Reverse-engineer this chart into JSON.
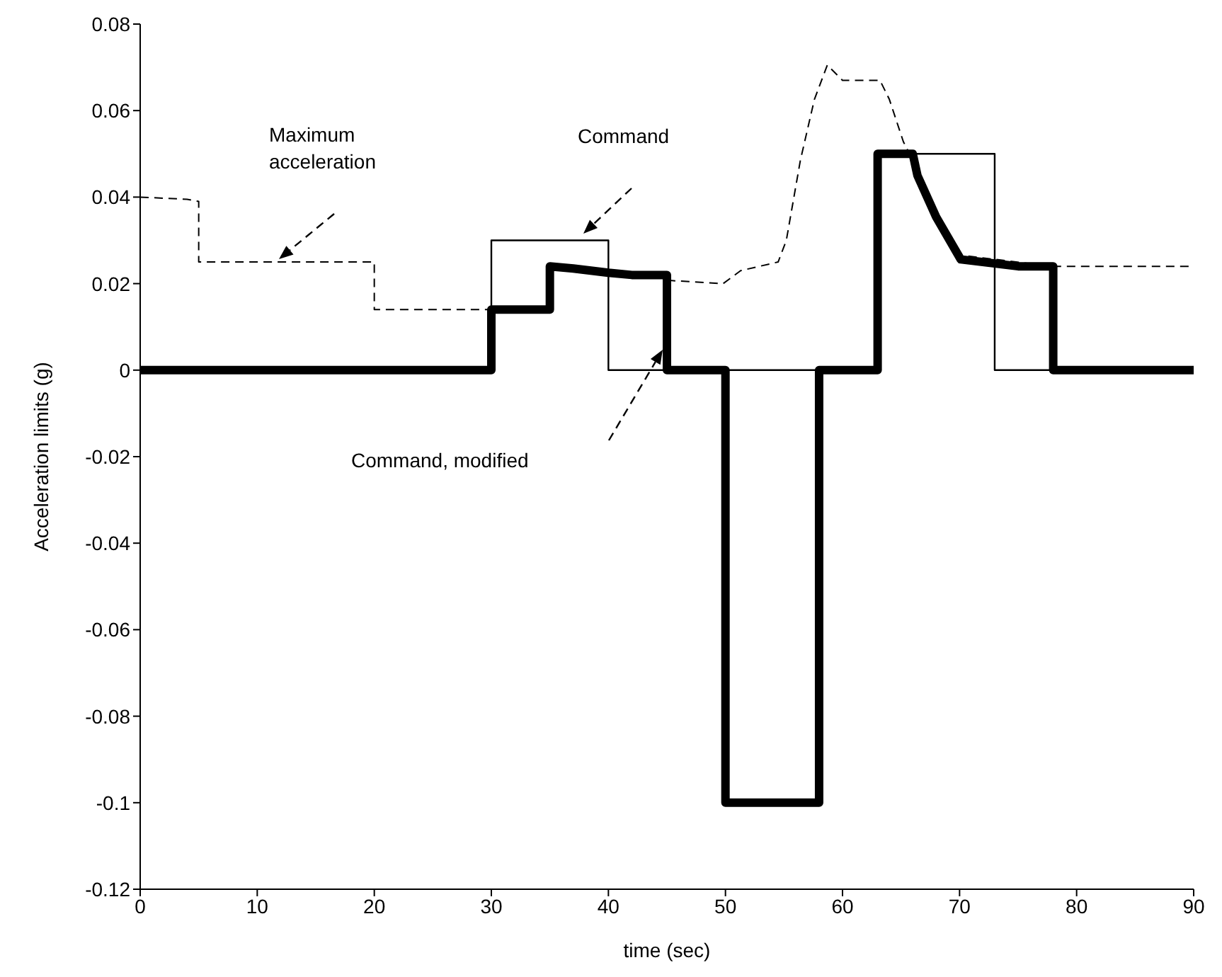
{
  "chart_data": {
    "type": "line",
    "xlabel": "time (sec)",
    "ylabel": "Acceleration limits (g)",
    "xlim": [
      0,
      90
    ],
    "xticks": [
      0,
      10,
      20,
      30,
      40,
      50,
      60,
      70,
      80,
      90
    ],
    "ylim": [
      -0.12,
      0.08
    ],
    "yticks": [
      -0.12,
      -0.1,
      -0.08,
      -0.06,
      -0.04,
      -0.02,
      0,
      0.02,
      0.04,
      0.06,
      0.08
    ],
    "marker": "none",
    "series": [
      {
        "color": "#000000",
        "line_style": "dashed",
        "x": [
          0,
          4,
          5,
          5,
          20,
          20,
          35,
          35,
          40,
          44,
          45.4,
          49.8,
          51.3,
          54.5,
          55.2,
          56.4,
          57.6,
          58.7,
          60,
          63.2,
          64,
          65.2,
          66,
          68,
          70,
          77.9,
          83,
          90
        ],
        "values": [
          0.04,
          0.0395,
          0.039,
          0.025,
          0.025,
          0.014,
          0.014,
          0.024,
          0.0225,
          0.022,
          0.0207,
          0.02,
          0.023,
          0.025,
          0.03,
          0.0485,
          0.0626,
          0.0705,
          0.067,
          0.067,
          0.0626,
          0.0528,
          0.0485,
          0.0354,
          0.0266,
          0.024,
          0.024,
          0.024
        ]
      },
      {
        "color": "#000000",
        "line_style": "solid",
        "x": [
          0,
          30,
          30,
          40,
          40,
          63,
          63,
          73,
          73,
          90
        ],
        "values": [
          0,
          0,
          0.03,
          0.03,
          0,
          0,
          0.05,
          0.05,
          0,
          0
        ]
      },
      {
        "color": "#000000",
        "line_style": "solid",
        "x": [
          0,
          30,
          30,
          35,
          35,
          37,
          40,
          42,
          44.5,
          45,
          45,
          50,
          50,
          58,
          58,
          63,
          63,
          66,
          66.4,
          68,
          70.1,
          75,
          78,
          78,
          90
        ],
        "values": [
          0,
          0,
          0.014,
          0.014,
          0.024,
          0.0235,
          0.0225,
          0.022,
          0.022,
          0.022,
          0,
          0,
          -0.1,
          -0.1,
          0,
          0,
          0.05,
          0.05,
          0.045,
          0.0354,
          0.0256,
          0.024,
          0.024,
          0,
          0
        ]
      }
    ],
    "annotations": [
      "Maximum\nacceleration",
      "Command",
      "Command, modified"
    ]
  }
}
